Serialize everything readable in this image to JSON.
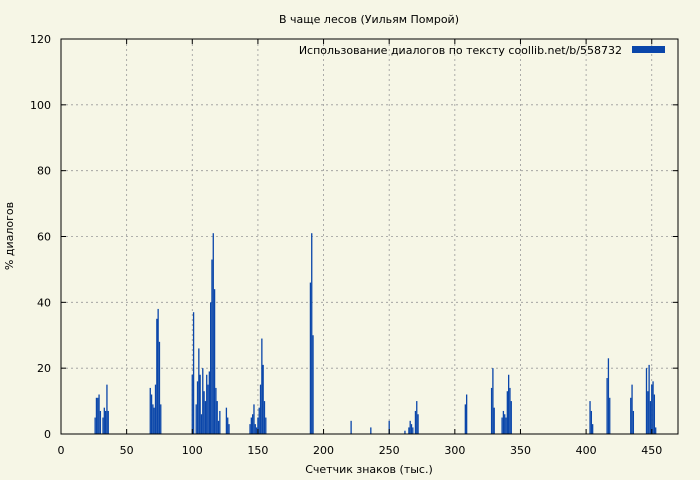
{
  "chart_data": {
    "type": "bar",
    "title": "В чаще лесов (Уильям Помрой)",
    "xlabel": "Счетчик знаков (тыс.)",
    "ylabel": "% диалогов",
    "xlim": [
      0,
      470
    ],
    "ylim": [
      0,
      120
    ],
    "xticks": [
      0,
      50,
      100,
      150,
      200,
      250,
      300,
      350,
      400,
      450
    ],
    "yticks": [
      0,
      20,
      40,
      60,
      80,
      100,
      120
    ],
    "grid": true,
    "legend_position": "top-right",
    "series": [
      {
        "name": "Использование диалогов по тексту  coollib.net/b/558732",
        "color": "#0a46aa",
        "x": [
          26,
          27,
          28,
          29,
          30,
          32,
          33,
          34,
          35,
          36,
          68,
          69,
          70,
          71,
          72,
          73,
          74,
          75,
          76,
          100,
          101,
          103,
          104,
          105,
          106,
          107,
          108,
          109,
          110,
          111,
          112,
          113,
          114,
          115,
          116,
          117,
          118,
          119,
          120,
          121,
          126,
          127,
          128,
          144,
          145,
          146,
          147,
          148,
          149,
          150,
          151,
          152,
          153,
          154,
          155,
          156,
          190,
          191,
          192,
          221,
          236,
          250,
          262,
          265,
          266,
          267,
          268,
          270,
          271,
          272,
          308,
          309,
          328,
          329,
          330,
          336,
          337,
          338,
          339,
          340,
          341,
          342,
          343,
          403,
          404,
          405,
          416,
          417,
          418,
          434,
          435,
          436,
          446,
          447,
          448,
          449,
          450,
          451,
          452,
          453
        ],
        "values": [
          5,
          11,
          11,
          12,
          7,
          5,
          8,
          7,
          15,
          7,
          14,
          12,
          9,
          8,
          15,
          35,
          38,
          28,
          9,
          18,
          37,
          9,
          16,
          26,
          18,
          6,
          20,
          13,
          10,
          18,
          15,
          19,
          40,
          53,
          61,
          44,
          14,
          10,
          4,
          7,
          8,
          5,
          3,
          3,
          5,
          6,
          9,
          3,
          2,
          5,
          8,
          15,
          29,
          21,
          10,
          5,
          46,
          61,
          30,
          4,
          2,
          4,
          1,
          2,
          4,
          3,
          2,
          7,
          10,
          6,
          9,
          12,
          14,
          20,
          8,
          5,
          7,
          6,
          5,
          13,
          18,
          14,
          10,
          10,
          7,
          3,
          17,
          23,
          11,
          11,
          15,
          7,
          20,
          13,
          21,
          10,
          15,
          16,
          12,
          2
        ]
      }
    ]
  }
}
